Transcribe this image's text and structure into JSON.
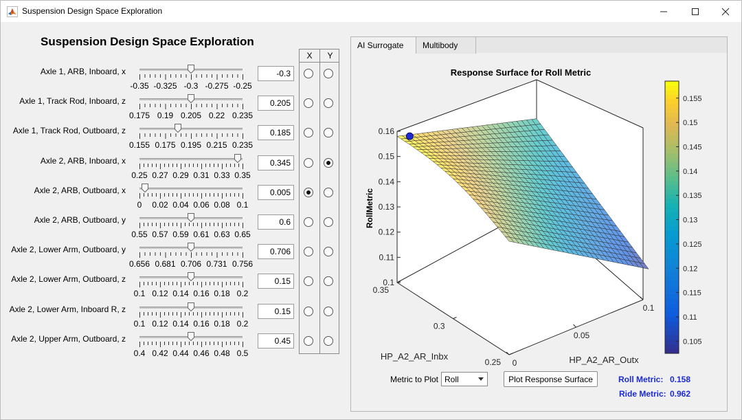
{
  "window": {
    "title": "Suspension Design Space Exploration"
  },
  "page": {
    "title": "Suspension Design Space Exploration"
  },
  "xy_headers": {
    "x": "X",
    "y": "Y"
  },
  "parameters": [
    {
      "label": "Axle 1, ARB, Inboard, x",
      "value": "-0.3",
      "fraction": 0.5,
      "ticks": [
        "-0.35",
        "-0.325",
        "-0.3",
        "-0.275",
        "-0.25"
      ],
      "x_selected": false,
      "y_selected": false
    },
    {
      "label": "Axle 1, Track Rod, Inboard, z",
      "value": "0.205",
      "fraction": 0.5,
      "ticks": [
        "0.175",
        "0.19",
        "0.205",
        "0.22",
        "0.235"
      ],
      "x_selected": false,
      "y_selected": false
    },
    {
      "label": "Axle 1, Track Rod, Outboard, z",
      "value": "0.185",
      "fraction": 0.375,
      "ticks": [
        "0.155",
        "0.175",
        "0.195",
        "0.215",
        "0.235"
      ],
      "x_selected": false,
      "y_selected": false
    },
    {
      "label": "Axle 2, ARB, Inboard, x",
      "value": "0.345",
      "fraction": 0.95,
      "ticks": [
        "0.25",
        "0.27",
        "0.29",
        "0.31",
        "0.33",
        "0.35"
      ],
      "x_selected": false,
      "y_selected": true
    },
    {
      "label": "Axle 2, ARB, Outboard, x",
      "value": "0.005",
      "fraction": 0.05,
      "ticks": [
        "0",
        "0.02",
        "0.04",
        "0.06",
        "0.08",
        "0.1"
      ],
      "x_selected": true,
      "y_selected": false
    },
    {
      "label": "Axle 2, ARB, Outboard, y",
      "value": "0.6",
      "fraction": 0.5,
      "ticks": [
        "0.55",
        "0.57",
        "0.59",
        "0.61",
        "0.63",
        "0.65"
      ],
      "x_selected": false,
      "y_selected": false
    },
    {
      "label": "Axle 2, Lower Arm, Outboard, y",
      "value": "0.706",
      "fraction": 0.5,
      "ticks": [
        "0.656",
        "0.681",
        "0.706",
        "0.731",
        "0.756"
      ],
      "x_selected": false,
      "y_selected": false
    },
    {
      "label": "Axle 2, Lower Arm, Outboard, z",
      "value": "0.15",
      "fraction": 0.5,
      "ticks": [
        "0.1",
        "0.12",
        "0.14",
        "0.16",
        "0.18",
        "0.2"
      ],
      "x_selected": false,
      "y_selected": false
    },
    {
      "label": "Axle 2, Lower Arm, Inboard R, z",
      "value": "0.15",
      "fraction": 0.5,
      "ticks": [
        "0.1",
        "0.12",
        "0.14",
        "0.16",
        "0.18",
        "0.2"
      ],
      "x_selected": false,
      "y_selected": false
    },
    {
      "label": "Axle 2, Upper Arm, Outboard, z",
      "value": "0.45",
      "fraction": 0.5,
      "ticks": [
        "0.4",
        "0.42",
        "0.44",
        "0.46",
        "0.48",
        "0.5"
      ],
      "x_selected": false,
      "y_selected": false
    }
  ],
  "tabs": [
    {
      "label": "AI Surrogate",
      "active": true
    },
    {
      "label": "Multibody",
      "active": false
    }
  ],
  "controls": {
    "metric_label": "Metric to Plot",
    "metric_value": "Roll",
    "plot_button": "Plot Response Surface",
    "roll_metric_label": "Roll Metric:",
    "roll_metric_value": "0.158",
    "ride_metric_label": "Ride Metric:",
    "ride_metric_value": "0.962"
  },
  "chart_data": {
    "type": "surface",
    "title": "Response Surface for Roll Metric",
    "zlabel": "RollMetric",
    "xlabel": "HP_A2_AR_Inbx",
    "ylabel": "HP_A2_AR_Outx",
    "x_ticks": [
      "0.25",
      "0.3",
      "0.35"
    ],
    "y_ticks": [
      "0",
      "0.05",
      "0.1"
    ],
    "z_ticks": [
      "0.1",
      "0.11",
      "0.12",
      "0.13",
      "0.14",
      "0.15",
      "0.16"
    ],
    "xlim": [
      0.25,
      0.35
    ],
    "ylim": [
      0,
      0.1
    ],
    "zlim": [
      0.1,
      0.16
    ],
    "colorbar_ticks": [
      "0.105",
      "0.11",
      "0.115",
      "0.12",
      "0.125",
      "0.13",
      "0.135",
      "0.14",
      "0.145",
      "0.15",
      "0.155"
    ],
    "colorbar_range": [
      0.1025,
      0.1585
    ],
    "colormap": "parula",
    "corners": {
      "inbx_0.35_outx_0": 0.158,
      "inbx_0.25_outx_0": 0.145,
      "inbx_0.25_outx_0.1": 0.104,
      "inbx_0.35_outx_0.1": 0.135
    },
    "marker": {
      "inbx": 0.345,
      "outx": 0.005,
      "value": 0.158,
      "color": "#1f2bd1"
    }
  }
}
